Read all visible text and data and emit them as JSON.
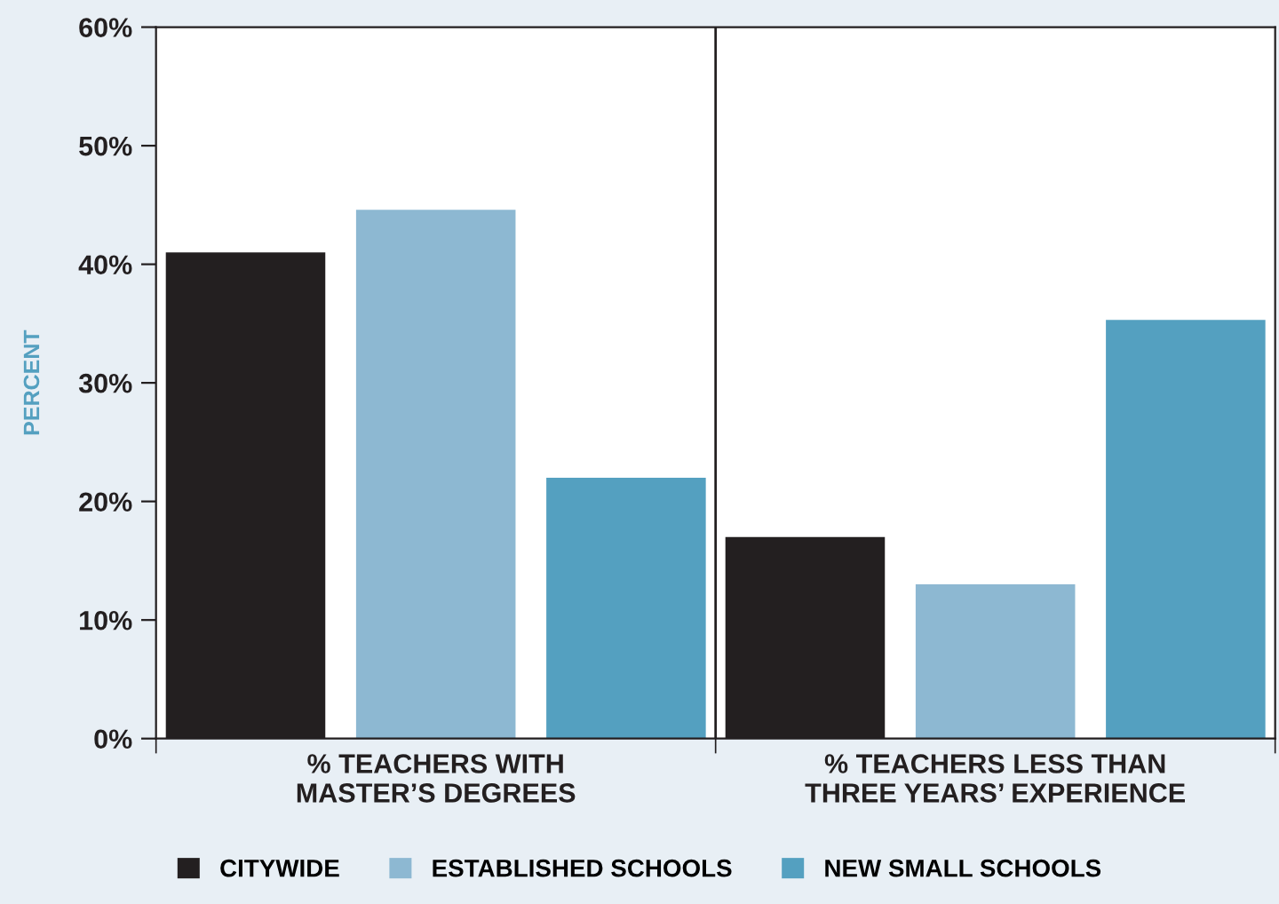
{
  "chart_data": {
    "type": "bar",
    "ylabel": "PERCENT",
    "categories": [
      "% TEACHERS WITH\nMASTER’S DEGREES",
      "% TEACHERS LESS THAN\nTHREE YEARS’ EXPERIENCE"
    ],
    "series": [
      {
        "name": "CITYWIDE",
        "color": "#231f20",
        "values": [
          41,
          17
        ]
      },
      {
        "name": "ESTABLISHED SCHOOLS",
        "color": "#8db8d2",
        "values": [
          44.6,
          13
        ]
      },
      {
        "name": "NEW SMALL SCHOOLS",
        "color": "#54a0c0",
        "values": [
          22,
          35.3
        ]
      }
    ],
    "ylim": [
      0,
      60
    ],
    "yticks": [
      {
        "value": 0,
        "label": "0%"
      },
      {
        "value": 10,
        "label": "10%"
      },
      {
        "value": 20,
        "label": "20%"
      },
      {
        "value": 30,
        "label": "30%"
      },
      {
        "value": 40,
        "label": "40%"
      },
      {
        "value": 50,
        "label": "50%"
      },
      {
        "value": 60,
        "label": "60%"
      }
    ],
    "grid": false,
    "legend": "bottom"
  }
}
